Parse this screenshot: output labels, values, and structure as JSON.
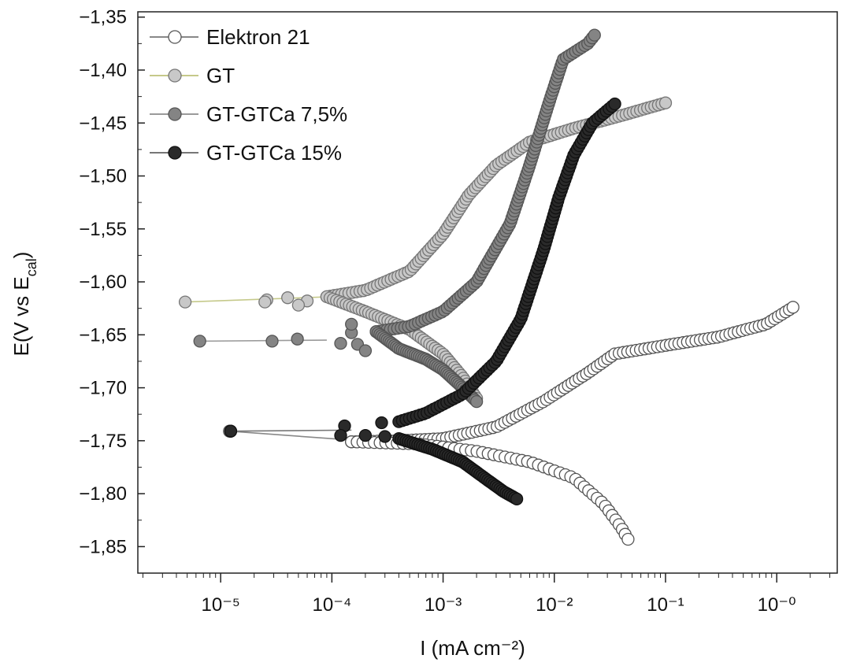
{
  "chart_data": {
    "type": "scatter",
    "title": "",
    "xlabel": "I (mA cm⁻²)",
    "ylabel_main": "E(V vs E",
    "ylabel_sub": "cal",
    "ylabel_close": ")",
    "x_scale": "log",
    "xlim": [
      1.8e-06,
      3.5
    ],
    "ylim": [
      -1.875,
      -1.345
    ],
    "x_ticks": [
      {
        "value": 1e-05,
        "label": "10⁻⁵"
      },
      {
        "value": 0.0001,
        "label": "10⁻⁴"
      },
      {
        "value": 0.001,
        "label": "10⁻³"
      },
      {
        "value": 0.01,
        "label": "10⁻²"
      },
      {
        "value": 0.1,
        "label": "10⁻¹"
      },
      {
        "value": 1,
        "label": "10⁻⁰"
      }
    ],
    "y_ticks": [
      {
        "value": -1.35,
        "label": "−1,35"
      },
      {
        "value": -1.4,
        "label": "−1,40"
      },
      {
        "value": -1.45,
        "label": "−1,45"
      },
      {
        "value": -1.5,
        "label": "−1,50"
      },
      {
        "value": -1.55,
        "label": "−1,55"
      },
      {
        "value": -1.6,
        "label": "−1,60"
      },
      {
        "value": -1.65,
        "label": "−1,65"
      },
      {
        "value": -1.7,
        "label": "−1,70"
      },
      {
        "value": -1.75,
        "label": "−1,75"
      },
      {
        "value": -1.8,
        "label": "−1,80"
      },
      {
        "value": -1.85,
        "label": "−1,85"
      }
    ],
    "grid": false,
    "legend_position": "top-left",
    "series": [
      {
        "name": "Elektron 21",
        "fill": "#ffffff",
        "stroke": "#555555",
        "line_color": "#888888",
        "tail": [
          [
            0.00018,
            -1.75
          ],
          [
            1.2e-05,
            -1.741
          ]
        ],
        "anodic": [
          [
            0.00015,
            -1.751
          ],
          [
            0.0004,
            -1.75
          ],
          [
            0.001,
            -1.748
          ],
          [
            0.003,
            -1.737
          ],
          [
            0.008,
            -1.713
          ],
          [
            0.02,
            -1.686
          ],
          [
            0.035,
            -1.668
          ],
          [
            0.1,
            -1.66
          ],
          [
            0.3,
            -1.652
          ],
          [
            0.8,
            -1.64
          ],
          [
            1.4,
            -1.624
          ]
        ],
        "cathodic": [
          [
            0.00015,
            -1.751
          ],
          [
            0.0006,
            -1.753
          ],
          [
            0.002,
            -1.76
          ],
          [
            0.006,
            -1.77
          ],
          [
            0.015,
            -1.785
          ],
          [
            0.028,
            -1.81
          ],
          [
            0.04,
            -1.832
          ],
          [
            0.046,
            -1.843
          ]
        ]
      },
      {
        "name": "GT",
        "fill": "#c8c8c8",
        "stroke": "#777777",
        "line_color": "#c5c98a",
        "tail": [
          [
            0.0001,
            -1.614
          ],
          [
            4.8e-06,
            -1.619
          ]
        ],
        "anodic": [
          [
            9e-05,
            -1.614
          ],
          [
            0.0002,
            -1.608
          ],
          [
            0.0005,
            -1.59
          ],
          [
            0.001,
            -1.555
          ],
          [
            0.0017,
            -1.518
          ],
          [
            0.003,
            -1.49
          ],
          [
            0.006,
            -1.468
          ],
          [
            0.015,
            -1.455
          ],
          [
            0.04,
            -1.443
          ],
          [
            0.1,
            -1.431
          ]
        ],
        "cathodic": [
          [
            9e-05,
            -1.614
          ],
          [
            0.0002,
            -1.628
          ],
          [
            0.0005,
            -1.645
          ],
          [
            0.001,
            -1.668
          ],
          [
            0.0015,
            -1.69
          ],
          [
            0.002,
            -1.71
          ]
        ],
        "scatter": [
          [
            2.6e-05,
            -1.617
          ],
          [
            4e-05,
            -1.615
          ],
          [
            6e-05,
            -1.618
          ],
          [
            2.5e-05,
            -1.619
          ],
          [
            5e-05,
            -1.622
          ]
        ]
      },
      {
        "name": "GT-GTCa 7,5%",
        "fill": "#848484",
        "stroke": "#555555",
        "line_color": "#9a9a9a",
        "tail": [
          [
            9e-05,
            -1.655
          ],
          [
            6.5e-06,
            -1.656
          ]
        ],
        "anodic": [
          [
            0.00025,
            -1.647
          ],
          [
            0.0005,
            -1.642
          ],
          [
            0.001,
            -1.628
          ],
          [
            0.002,
            -1.6
          ],
          [
            0.004,
            -1.545
          ],
          [
            0.006,
            -1.49
          ],
          [
            0.009,
            -1.43
          ],
          [
            0.012,
            -1.39
          ],
          [
            0.02,
            -1.375
          ],
          [
            0.023,
            -1.367
          ]
        ],
        "cathodic": [
          [
            0.00025,
            -1.647
          ],
          [
            0.0004,
            -1.663
          ],
          [
            0.0007,
            -1.673
          ],
          [
            0.001,
            -1.683
          ],
          [
            0.0014,
            -1.697
          ],
          [
            0.002,
            -1.713
          ]
        ],
        "scatter": [
          [
            2.9e-05,
            -1.656
          ],
          [
            4.9e-05,
            -1.654
          ],
          [
            0.00012,
            -1.658
          ],
          [
            0.00015,
            -1.648
          ],
          [
            0.00017,
            -1.659
          ],
          [
            0.0002,
            -1.665
          ],
          [
            0.00015,
            -1.64
          ]
        ]
      },
      {
        "name": "GT-GTCa 15%",
        "fill": "#2a2a2a",
        "stroke": "#111111",
        "line_color": "#777777",
        "tail": [
          [
            0.00015,
            -1.74
          ],
          [
            1.23e-05,
            -1.741
          ]
        ],
        "anodic": [
          [
            0.0004,
            -1.732
          ],
          [
            0.0007,
            -1.724
          ],
          [
            0.0015,
            -1.706
          ],
          [
            0.003,
            -1.675
          ],
          [
            0.005,
            -1.635
          ],
          [
            0.008,
            -1.57
          ],
          [
            0.011,
            -1.52
          ],
          [
            0.015,
            -1.48
          ],
          [
            0.022,
            -1.45
          ],
          [
            0.035,
            -1.432
          ]
        ],
        "cathodic": [
          [
            0.0004,
            -1.748
          ],
          [
            0.0008,
            -1.758
          ],
          [
            0.0015,
            -1.77
          ],
          [
            0.0025,
            -1.787
          ],
          [
            0.0035,
            -1.798
          ],
          [
            0.0046,
            -1.805
          ]
        ],
        "scatter": [
          [
            1.23e-05,
            -1.741
          ],
          [
            0.00013,
            -1.736
          ],
          [
            0.00012,
            -1.745
          ],
          [
            0.00028,
            -1.733
          ],
          [
            0.0003,
            -1.746
          ],
          [
            0.0002,
            -1.745
          ]
        ]
      }
    ]
  }
}
